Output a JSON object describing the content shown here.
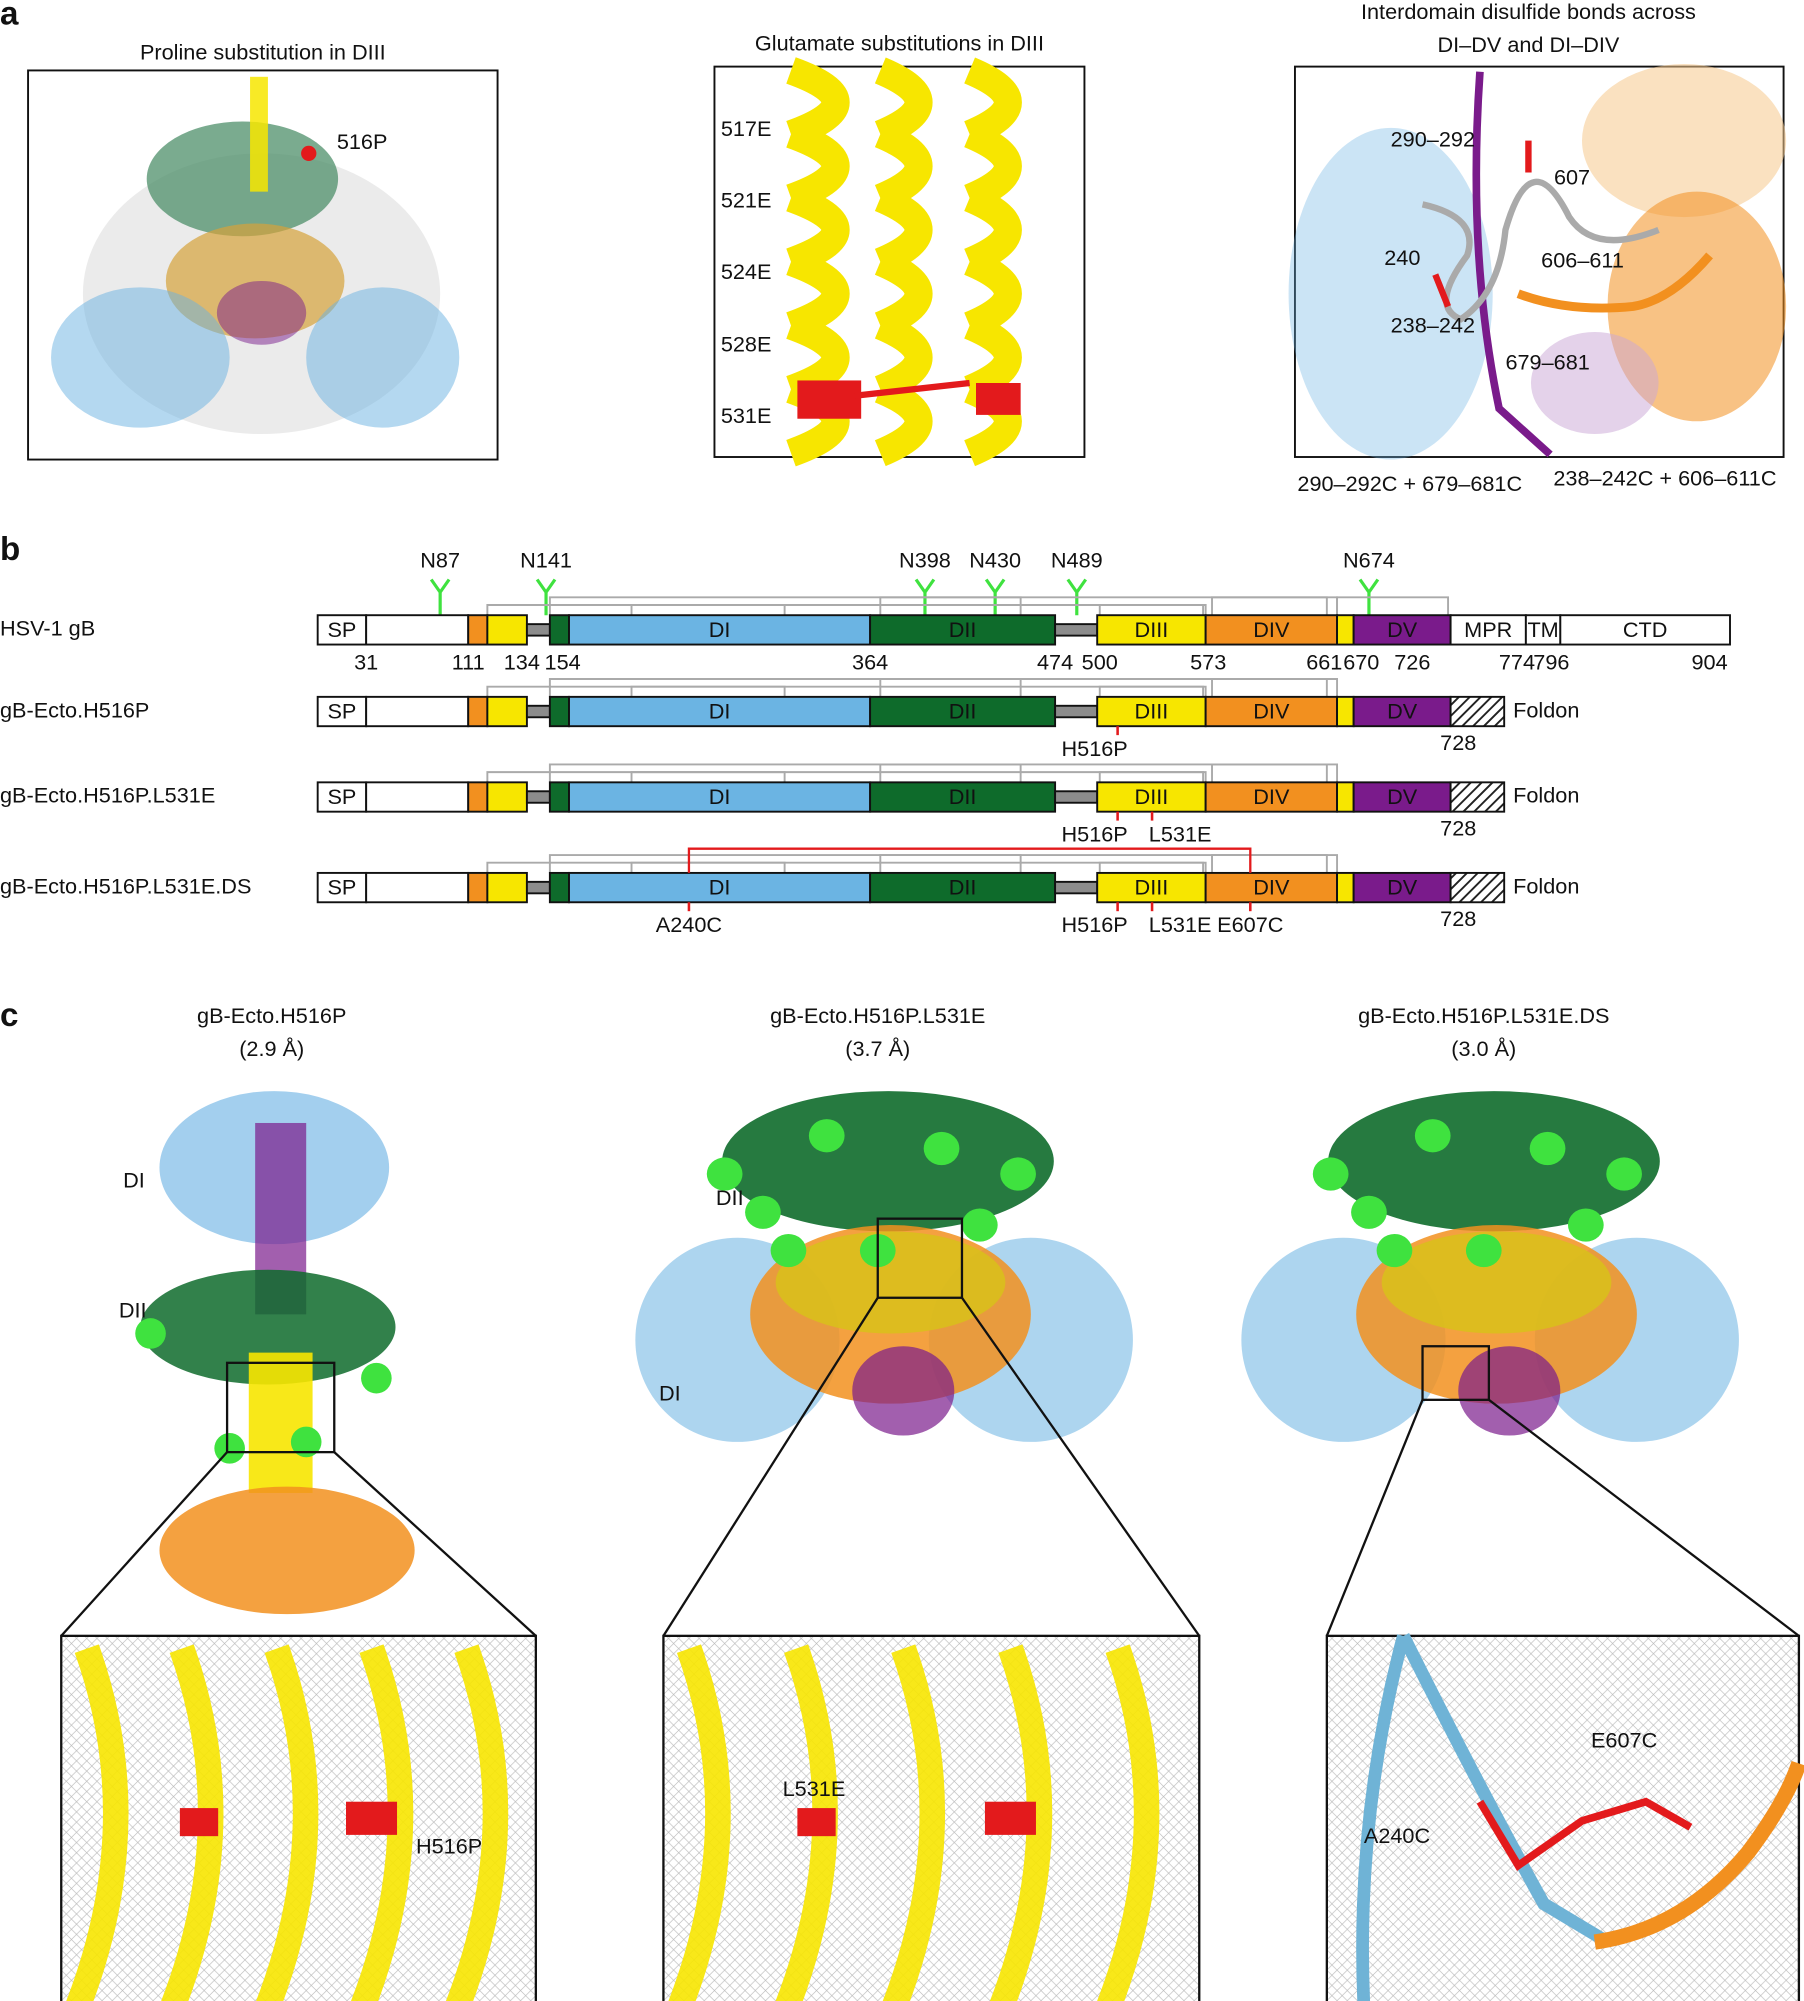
{
  "panel_a": {
    "label": "a",
    "proline": {
      "title": "Proline substitution in DIII",
      "site": "516P"
    },
    "glutamate": {
      "title": "Glutamate substitutions in DIII",
      "sites": [
        "517E",
        "521E",
        "524E",
        "528E",
        "531E"
      ]
    },
    "disulfide": {
      "title": [
        "Interdomain disulfide bonds across",
        "DI–DV and DI–DIV"
      ],
      "labels": [
        "290–292",
        "607",
        "240",
        "606–611",
        "238–242",
        "679–681"
      ],
      "captions": [
        "290–292C + 679–681C",
        "238–242C + 606–611C"
      ]
    }
  },
  "panel_b": {
    "label": "b",
    "glycans": [
      "N87",
      "N141",
      "N398",
      "N430",
      "N489",
      "N674"
    ],
    "domains": {
      "sp": "SP",
      "di": "DI",
      "dii": "DII",
      "diii": "DIII",
      "div": "DIV",
      "dv": "DV",
      "mpr": "MPR",
      "tm": "TM",
      "ctd": "CTD"
    },
    "positions": [
      "31",
      "111",
      "134",
      "154",
      "364",
      "474",
      "500",
      "573",
      "661",
      "670",
      "726",
      "774",
      "796",
      "904"
    ],
    "constructs": [
      {
        "name": "HSV-1 gB",
        "mutations": []
      },
      {
        "name": "gB-Ecto.H516P",
        "mutations": [
          "H516P"
        ],
        "end": "728",
        "tag": "Foldon"
      },
      {
        "name": "gB-Ecto.H516P.L531E",
        "mutations": [
          "H516P",
          "L531E"
        ],
        "end": "728",
        "tag": "Foldon"
      },
      {
        "name": "gB-Ecto.H516P.L531E.DS",
        "mutations": [
          "A240C",
          "H516P",
          "L531E",
          "E607C"
        ],
        "end": "728",
        "tag": "Foldon"
      }
    ]
  },
  "panel_c": {
    "label": "c",
    "structures": [
      {
        "name": "gB-Ecto.H516P",
        "resolution": "(2.9 Å)",
        "domain_labels": [
          "DI",
          "DII"
        ],
        "zoom_labels": [
          "H516P"
        ]
      },
      {
        "name": "gB-Ecto.H516P.L531E",
        "resolution": "(3.7 Å)",
        "domain_labels": [
          "DII",
          "DI"
        ],
        "zoom_labels": [
          "L531E"
        ]
      },
      {
        "name": "gB-Ecto.H516P.L531E.DS",
        "resolution": "(3.0 Å)",
        "domain_labels": [],
        "zoom_labels": [
          "E607C",
          "A240C"
        ]
      }
    ]
  }
}
